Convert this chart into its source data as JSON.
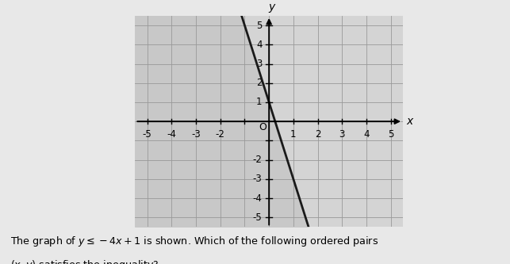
{
  "xlabel": "x",
  "ylabel": "y",
  "xlim": [
    -5.5,
    5.5
  ],
  "ylim": [
    -5.5,
    5.5
  ],
  "line_slope": -4,
  "line_intercept": 1,
  "shade_color": "#c8c8c8",
  "shade_alpha": 1.0,
  "line_color": "#1a1a1a",
  "line_width": 2.0,
  "grid_color": "#999999",
  "grid_linewidth": 0.6,
  "bg_color": "#d4d4d4",
  "outer_bg": "#e8e8e8",
  "caption_line1": "The graph of $y \\leq -4x + 1$ is shown. Which of the following ordered pairs",
  "caption_line2": "$(x, y)$ satisfies the inequality?"
}
